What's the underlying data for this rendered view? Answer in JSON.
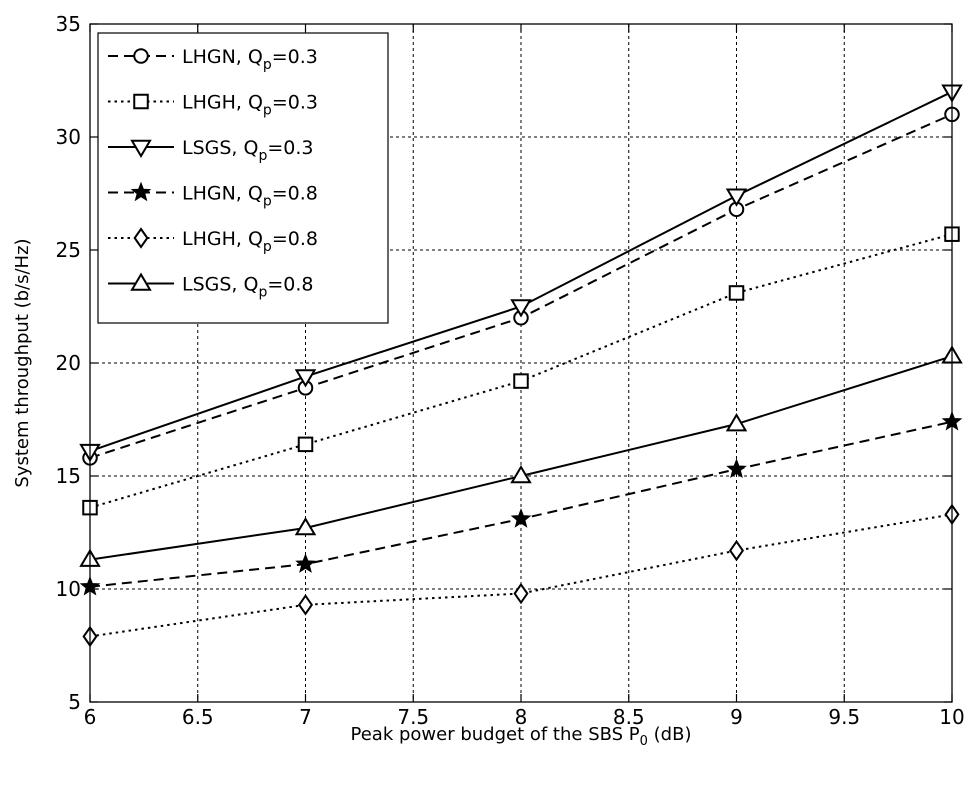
{
  "chart_data": {
    "type": "line",
    "title": "",
    "xlabel": {
      "main": "Peak power budget of the SBS P",
      "sub": "0",
      "suffix": " (dB)"
    },
    "ylabel": "System throughput (b/s/Hz)",
    "x": [
      6,
      7,
      8,
      9,
      10
    ],
    "xlim": [
      6,
      10
    ],
    "ylim": [
      5,
      35
    ],
    "xticks": [
      6,
      6.5,
      7,
      7.5,
      8,
      8.5,
      9,
      9.5,
      10
    ],
    "xtick_labels": [
      "6",
      "6.5",
      "7",
      "7.5",
      "8",
      "8.5",
      "9",
      "9.5",
      "10"
    ],
    "yticks": [
      5,
      10,
      15,
      20,
      25,
      30,
      35
    ],
    "ytick_labels": [
      "5",
      "10",
      "15",
      "20",
      "25",
      "30",
      "35"
    ],
    "grid": true,
    "legend_position": "top-left",
    "series": [
      {
        "name": "LHGN, Q",
        "sub": "p",
        "suffix": "=0.3",
        "line": "dashed",
        "marker": "circle",
        "values": [
          15.8,
          18.9,
          22.0,
          26.8,
          31.0
        ]
      },
      {
        "name": "LHGH, Q",
        "sub": "p",
        "suffix": "=0.3",
        "line": "dotted",
        "marker": "square",
        "values": [
          13.6,
          16.4,
          19.2,
          23.1,
          25.7
        ]
      },
      {
        "name": "LSGS, Q",
        "sub": "p",
        "suffix": "=0.3",
        "line": "solid",
        "marker": "triangle-down",
        "values": [
          16.1,
          19.4,
          22.5,
          27.4,
          32.0
        ]
      },
      {
        "name": "LHGN, Q",
        "sub": "p",
        "suffix": "=0.8",
        "line": "dashed",
        "marker": "star",
        "values": [
          10.1,
          11.1,
          13.1,
          15.3,
          17.4
        ]
      },
      {
        "name": "LHGH, Q",
        "sub": "p",
        "suffix": "=0.8",
        "line": "dotted",
        "marker": "diamond",
        "values": [
          7.9,
          9.3,
          9.8,
          11.7,
          13.3
        ]
      },
      {
        "name": "LSGS, Q",
        "sub": "p",
        "suffix": "=0.8",
        "line": "solid",
        "marker": "triangle-up",
        "values": [
          11.3,
          12.7,
          15.0,
          17.3,
          20.3
        ]
      }
    ]
  }
}
